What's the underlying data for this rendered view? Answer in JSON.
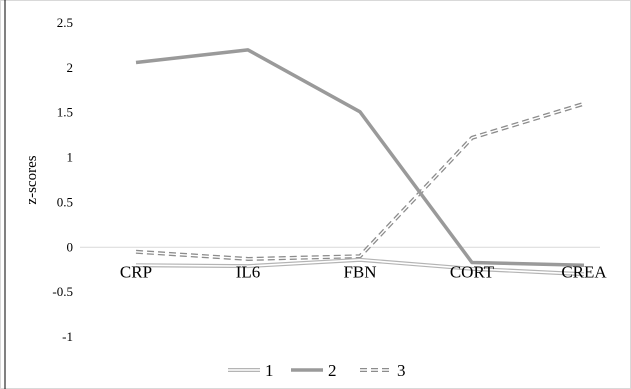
{
  "chart_data": {
    "type": "line",
    "title": "",
    "xlabel": "",
    "ylabel": "z-scores",
    "categories": [
      "CRP",
      "IL6",
      "FBN",
      "CORT",
      "CREA"
    ],
    "ylim": [
      -1,
      2.5
    ],
    "yticks": [
      "2.5",
      "2",
      "1.5",
      "1",
      "0.5",
      "0",
      "-0.5",
      "-1"
    ],
    "grid": false,
    "legend_position": "bottom",
    "series": [
      {
        "name": "1",
        "values": [
          -0.2,
          -0.21,
          -0.14,
          -0.24,
          -0.3
        ],
        "style": "double",
        "color": "#b4b4b4"
      },
      {
        "name": "2",
        "values": [
          2.06,
          2.2,
          1.51,
          -0.17,
          -0.2
        ],
        "style": "solid",
        "color": "#9a9a9a"
      },
      {
        "name": "3",
        "values": [
          -0.05,
          -0.13,
          -0.1,
          1.22,
          1.6
        ],
        "style": "double-dashed",
        "color": "#8c8c8c"
      }
    ]
  }
}
